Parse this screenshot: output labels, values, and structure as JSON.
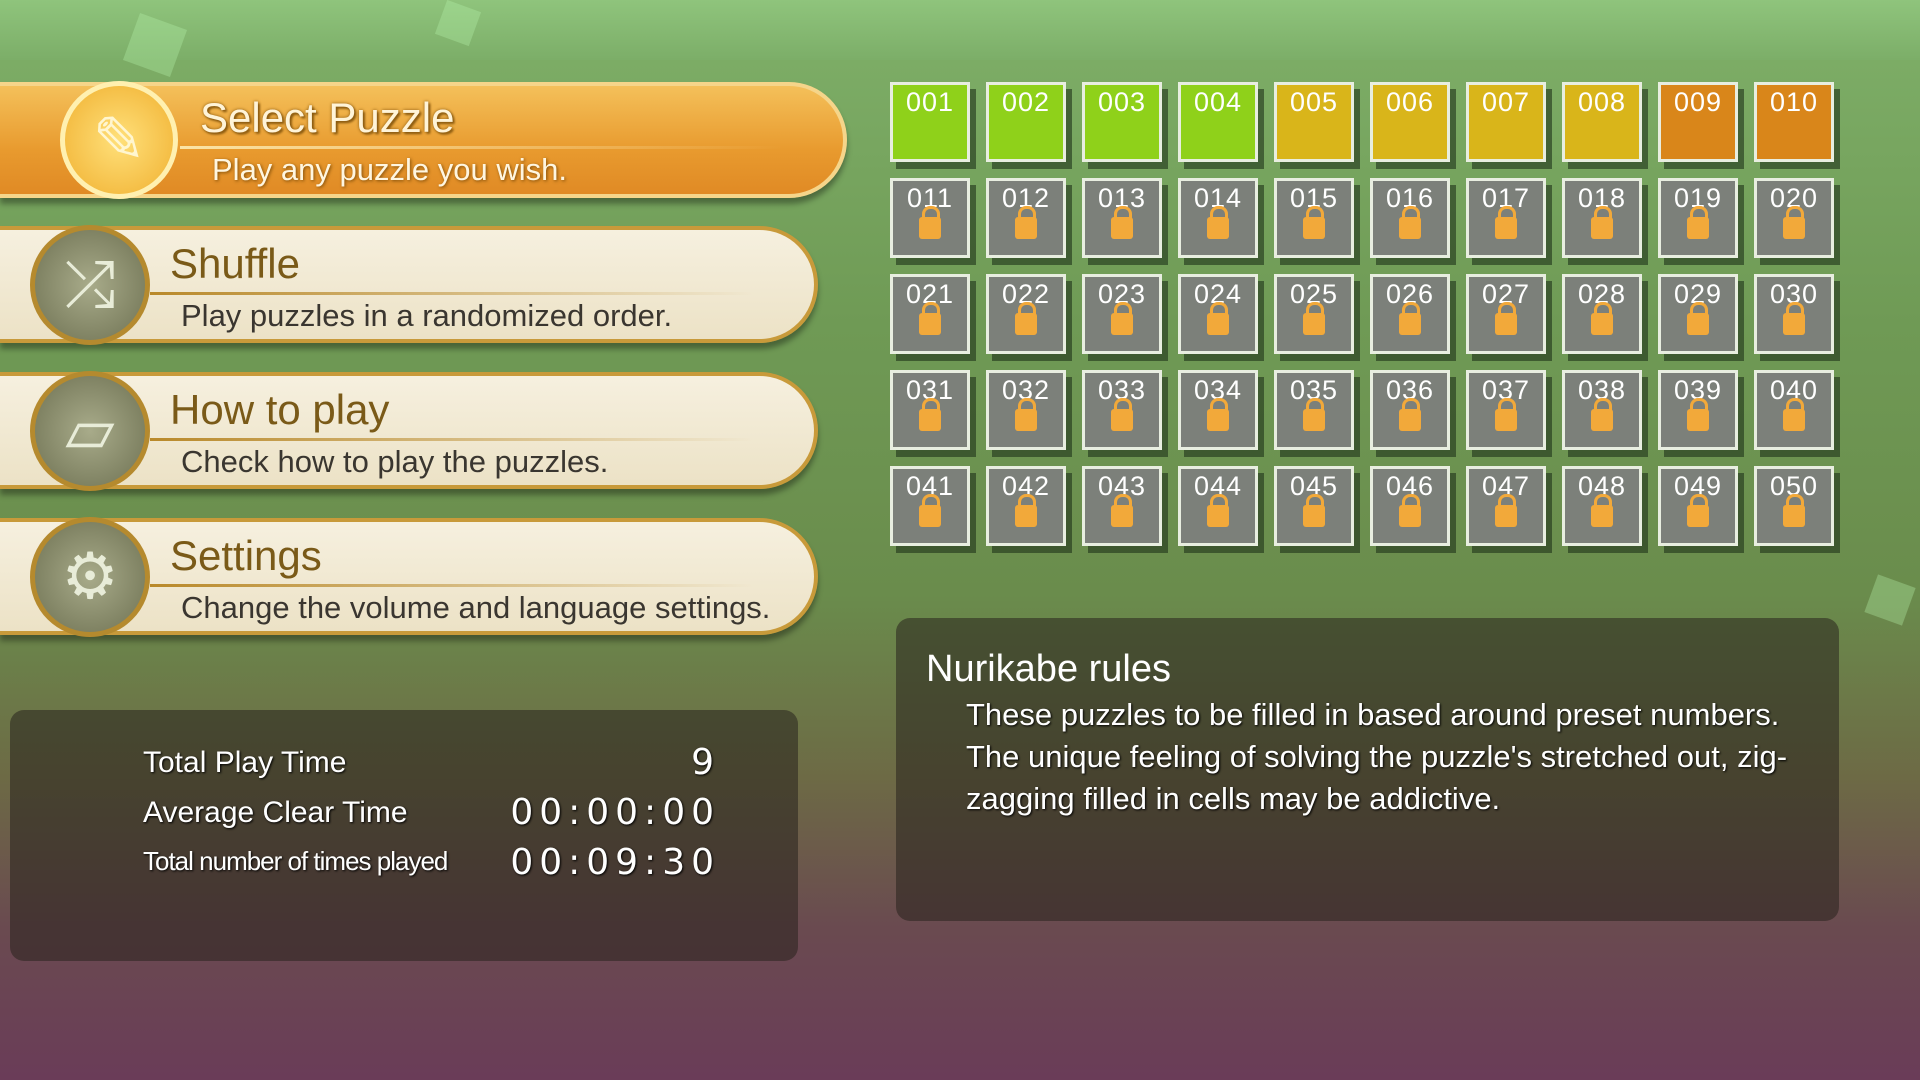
{
  "menu": [
    {
      "title": "Select Puzzle",
      "subtitle": "Play any puzzle you wish.",
      "icon": "pencil-icon",
      "selected": true
    },
    {
      "title": "Shuffle",
      "subtitle": "Play puzzles in a randomized order.",
      "icon": "shuffle-arrows-icon",
      "selected": false
    },
    {
      "title": "How to play",
      "subtitle": "Check how to play the puzzles.",
      "icon": "book-icon",
      "selected": false
    },
    {
      "title": "Settings",
      "subtitle": "Change the volume and language settings.",
      "icon": "gear-icon",
      "selected": false
    }
  ],
  "puzzles": {
    "labels": [
      "001",
      "002",
      "003",
      "004",
      "005",
      "006",
      "007",
      "008",
      "009",
      "010",
      "011",
      "012",
      "013",
      "014",
      "015",
      "016",
      "017",
      "018",
      "019",
      "020",
      "021",
      "022",
      "023",
      "024",
      "025",
      "026",
      "027",
      "028",
      "029",
      "030",
      "031",
      "032",
      "033",
      "034",
      "035",
      "036",
      "037",
      "038",
      "039",
      "040",
      "041",
      "042",
      "043",
      "044",
      "045",
      "046",
      "047",
      "048",
      "049",
      "050"
    ],
    "unlocked_colors": [
      "#8fd11a",
      "#8fd11a",
      "#8fd11a",
      "#8fd11a",
      "#d9b51a",
      "#d9b51a",
      "#d9b51a",
      "#d9b51a",
      "#d9861a",
      "#d9861a"
    ],
    "locked_color": "#7c807a"
  },
  "stats": {
    "rows": [
      {
        "label": "Total Play Time",
        "value": "9"
      },
      {
        "label": "Average Clear Time",
        "value": "00:00:00"
      },
      {
        "label": "Total number of times played",
        "value": "00:09:30"
      }
    ]
  },
  "rules": {
    "title": "Nurikabe rules",
    "body": "These puzzles to be filled in based around preset numbers. The unique feeling of solving the puzzle's stretched out, zig-zagging filled in cells may be addictive."
  }
}
